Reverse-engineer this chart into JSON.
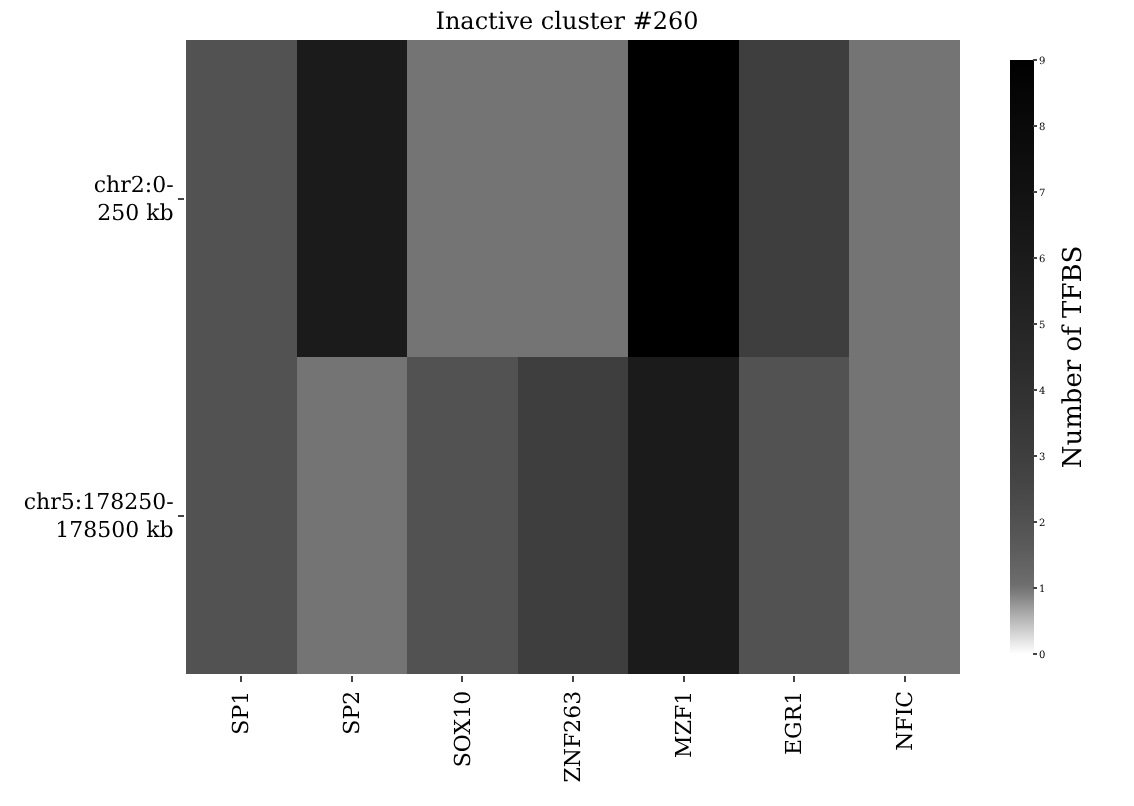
{
  "chart_data": {
    "type": "heatmap",
    "title": "Inactive cluster #260",
    "clabel": "Number of TFBS",
    "categories": [
      "SP1",
      "SP2",
      "SOX10",
      "ZNF263",
      "MZF1",
      "EGR1",
      "NFIC"
    ],
    "y_categories": [
      "chr2:0-250 kb",
      "chr5:178250-178500 kb"
    ],
    "cells": [
      [
        2,
        6,
        1,
        1,
        9,
        3,
        1
      ],
      [
        2,
        1,
        2,
        3,
        6,
        2,
        1
      ]
    ],
    "clim": [
      0,
      9
    ],
    "cticks": [
      0,
      1,
      2,
      3,
      4,
      5,
      6,
      7,
      8,
      9
    ]
  }
}
